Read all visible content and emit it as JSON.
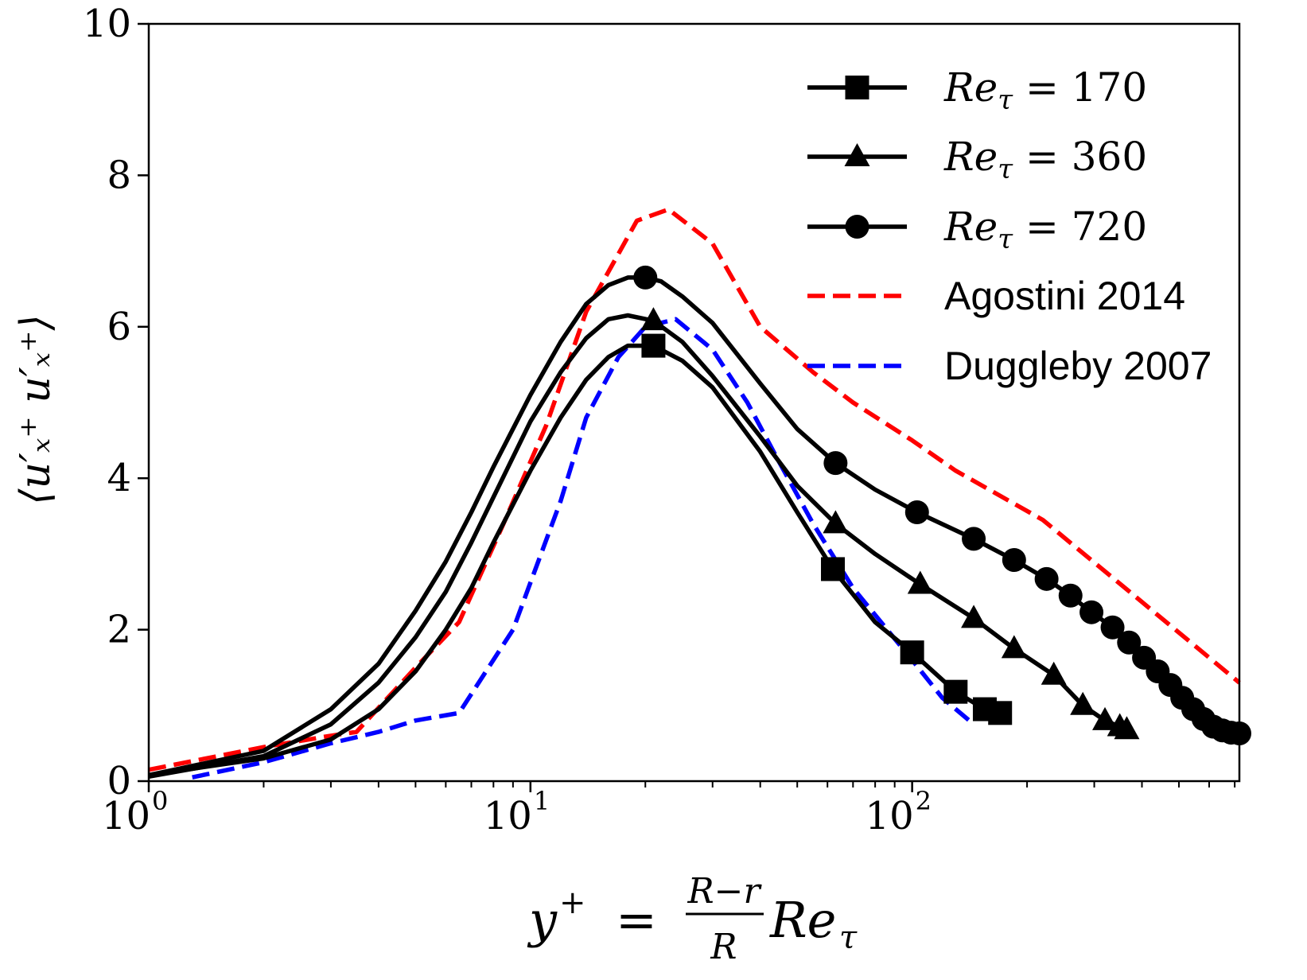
{
  "chart_data": {
    "type": "line",
    "title": "",
    "xscale": "log",
    "xlim": [
      1,
      720
    ],
    "ylim": [
      0,
      10
    ],
    "grid": false,
    "legend_position": "top-right",
    "xlabel": {
      "prefix": "y",
      "sup": "+",
      "eq": " = ",
      "frac_num": "R−r",
      "frac_den": "R",
      "suffix": "Re",
      "suffix_sub": "τ"
    },
    "ylabel": "⟨u′ₓ⁺ u′ₓ⁺⟩",
    "yticks": [
      {
        "v": 0,
        "label": "0"
      },
      {
        "v": 2,
        "label": "2"
      },
      {
        "v": 4,
        "label": "4"
      },
      {
        "v": 6,
        "label": "6"
      },
      {
        "v": 8,
        "label": "8"
      },
      {
        "v": 10,
        "label": "10"
      }
    ],
    "xticks_major": [
      {
        "v": 1,
        "base": "10",
        "exp": "0"
      },
      {
        "v": 10,
        "base": "10",
        "exp": "1"
      },
      {
        "v": 100,
        "base": "10",
        "exp": "2"
      }
    ],
    "series": [
      {
        "name": "Re_tau = 170",
        "legend": {
          "main": "Re",
          "sub": "τ",
          "rest": " = 170"
        },
        "color": "#000000",
        "dash": "solid",
        "marker": "square",
        "x": [
          1,
          2,
          3,
          4,
          5,
          6,
          7,
          8,
          10,
          12,
          14,
          16,
          18,
          21,
          25,
          30,
          40,
          50,
          62,
          80,
          100,
          130,
          155,
          170
        ],
        "y": [
          0.08,
          0.3,
          0.55,
          0.95,
          1.45,
          2.0,
          2.55,
          3.15,
          4.1,
          4.8,
          5.3,
          5.6,
          5.75,
          5.75,
          5.55,
          5.2,
          4.35,
          3.55,
          2.8,
          2.1,
          1.7,
          1.18,
          0.95,
          0.9
        ],
        "markers_x": [
          21,
          62,
          100,
          130,
          155,
          170
        ],
        "markers_y": [
          5.75,
          2.8,
          1.7,
          1.18,
          0.95,
          0.9
        ]
      },
      {
        "name": "Re_tau = 360",
        "legend": {
          "main": "Re",
          "sub": "τ",
          "rest": " = 360"
        },
        "color": "#000000",
        "dash": "solid",
        "marker": "triangle",
        "x": [
          1,
          2,
          3,
          4,
          5,
          6,
          7,
          8,
          10,
          12,
          14,
          16,
          18,
          21,
          25,
          30,
          40,
          50,
          63,
          80,
          105,
          145,
          185,
          235,
          280,
          320,
          350,
          365
        ],
        "y": [
          0.06,
          0.33,
          0.75,
          1.3,
          1.9,
          2.5,
          3.15,
          3.75,
          4.75,
          5.4,
          5.85,
          6.1,
          6.15,
          6.08,
          5.8,
          5.35,
          4.55,
          3.9,
          3.4,
          3.0,
          2.6,
          2.15,
          1.75,
          1.4,
          1.0,
          0.8,
          0.72,
          0.68
        ],
        "markers_x": [
          21,
          63,
          105,
          145,
          185,
          235,
          280,
          320,
          350,
          365
        ],
        "markers_y": [
          6.08,
          3.4,
          2.6,
          2.15,
          1.75,
          1.4,
          1.0,
          0.8,
          0.72,
          0.68
        ]
      },
      {
        "name": "Re_tau = 720",
        "legend": {
          "main": "Re",
          "sub": "τ",
          "rest": " = 720"
        },
        "color": "#000000",
        "dash": "solid",
        "marker": "circle",
        "x": [
          1,
          2,
          3,
          4,
          5,
          6,
          7,
          8,
          10,
          12,
          14,
          16,
          18,
          20,
          22,
          25,
          30,
          40,
          50,
          63,
          80,
          103,
          145,
          185,
          225,
          260,
          295,
          335,
          370,
          405,
          440,
          475,
          510,
          545,
          580,
          615,
          650,
          685,
          720
        ],
        "y": [
          0.08,
          0.4,
          0.95,
          1.55,
          2.25,
          2.9,
          3.55,
          4.15,
          5.1,
          5.8,
          6.3,
          6.55,
          6.65,
          6.65,
          6.6,
          6.4,
          6.05,
          5.25,
          4.65,
          4.2,
          3.85,
          3.55,
          3.2,
          2.92,
          2.67,
          2.45,
          2.23,
          2.03,
          1.83,
          1.63,
          1.45,
          1.27,
          1.1,
          0.95,
          0.82,
          0.72,
          0.67,
          0.64,
          0.63
        ],
        "markers_x": [
          20,
          63,
          103,
          145,
          185,
          225,
          260,
          295,
          335,
          370,
          405,
          440,
          475,
          510,
          545,
          580,
          615,
          650,
          685,
          720
        ],
        "markers_y": [
          6.65,
          4.2,
          3.55,
          3.2,
          2.92,
          2.67,
          2.45,
          2.23,
          2.03,
          1.83,
          1.63,
          1.45,
          1.27,
          1.1,
          0.95,
          0.82,
          0.72,
          0.67,
          0.64,
          0.63
        ]
      },
      {
        "name": "Agostini 2014",
        "legend": {
          "main": "Agostini 2014",
          "sub": "",
          "rest": ""
        },
        "color": "#ff0000",
        "dash": "dashed",
        "marker": "none",
        "x": [
          1,
          2,
          3,
          3.5,
          5,
          6.5,
          8.5,
          11,
          14,
          19,
          23,
          30,
          40,
          55,
          70,
          100,
          130,
          220,
          720
        ],
        "y": [
          0.15,
          0.45,
          0.6,
          0.65,
          1.5,
          2.1,
          3.4,
          4.7,
          6.2,
          7.4,
          7.55,
          7.1,
          6.0,
          5.4,
          5.0,
          4.5,
          4.1,
          3.45,
          1.3
        ],
        "markers_x": [],
        "markers_y": []
      },
      {
        "name": "Duggleby 2007",
        "legend": {
          "main": "Duggleby 2007",
          "sub": "",
          "rest": ""
        },
        "color": "#0000ff",
        "dash": "dashed",
        "marker": "none",
        "x": [
          1.3,
          2,
          3,
          4,
          5,
          6.5,
          9,
          12,
          14,
          17,
          20,
          24,
          30,
          37,
          45,
          55,
          70,
          100,
          120,
          145
        ],
        "y": [
          0.05,
          0.25,
          0.5,
          0.65,
          0.8,
          0.9,
          2.0,
          3.7,
          4.8,
          5.6,
          6.0,
          6.1,
          5.7,
          5.0,
          4.2,
          3.4,
          2.55,
          1.6,
          1.1,
          0.75
        ],
        "markers_x": [],
        "markers_y": []
      }
    ]
  }
}
